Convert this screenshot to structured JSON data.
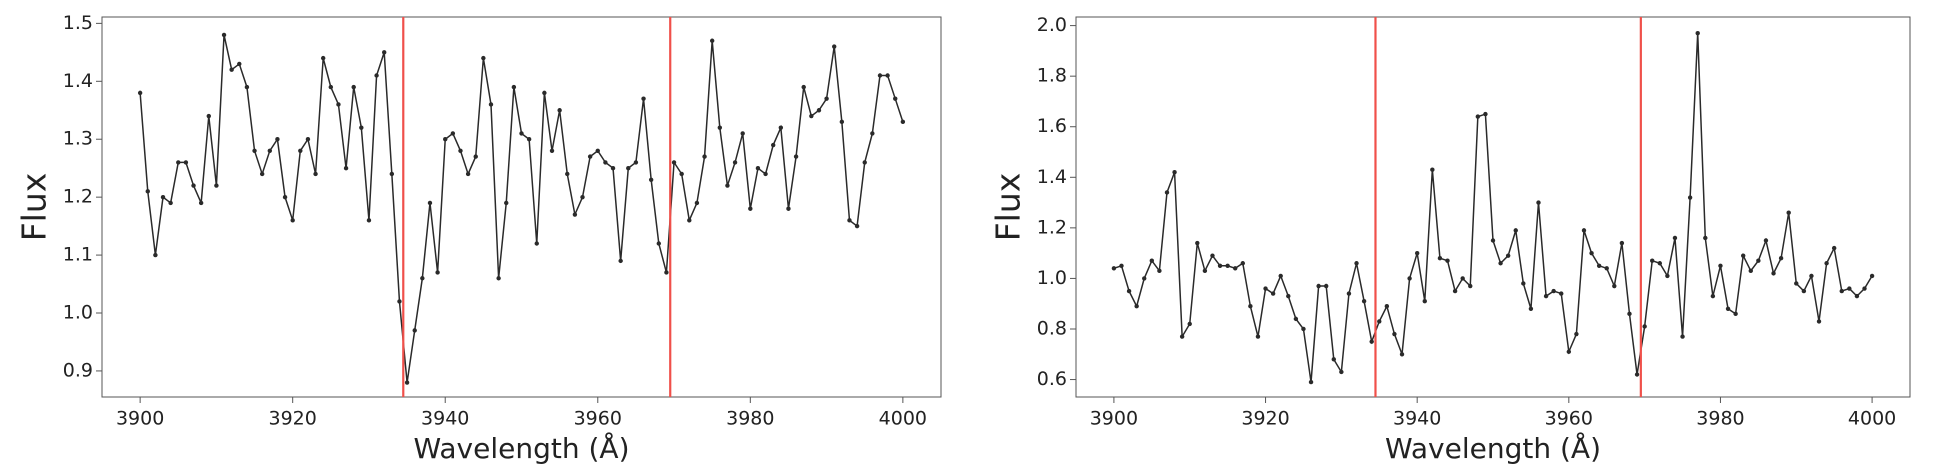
{
  "chart_data": [
    {
      "type": "line",
      "xlabel": "Wavelength (Å)",
      "ylabel": "Flux",
      "xlim": [
        3895,
        4005
      ],
      "ylim": [
        0.855,
        1.511
      ],
      "xticks": [
        3900,
        3920,
        3940,
        3960,
        3980,
        4000
      ],
      "yticks": [
        0.9,
        {
          "value": 1.0,
          "label": "1.0"
        },
        1.1,
        1.2,
        1.3,
        1.4,
        1.5
      ],
      "vlines": [
        3934.5,
        3969.5
      ],
      "vline_color": "#f0504a",
      "x": [
        3900,
        3901,
        3902,
        3903,
        3904,
        3905,
        3906,
        3907,
        3908,
        3909,
        3910,
        3911,
        3912,
        3913,
        3914,
        3915,
        3916,
        3917,
        3918,
        3919,
        3920,
        3921,
        3922,
        3923,
        3924,
        3925,
        3926,
        3927,
        3928,
        3929,
        3930,
        3931,
        3932,
        3933,
        3934,
        3935,
        3936,
        3937,
        3938,
        3939,
        3940,
        3941,
        3942,
        3943,
        3944,
        3945,
        3946,
        3947,
        3948,
        3949,
        3950,
        3951,
        3952,
        3953,
        3954,
        3955,
        3956,
        3957,
        3958,
        3959,
        3960,
        3961,
        3962,
        3963,
        3964,
        3965,
        3966,
        3967,
        3968,
        3969,
        3970,
        3971,
        3972,
        3973,
        3974,
        3975,
        3976,
        3977,
        3978,
        3979,
        3980,
        3981,
        3982,
        3983,
        3984,
        3985,
        3986,
        3987,
        3988,
        3989,
        3990,
        3991,
        3992,
        3993,
        3994,
        3995,
        3996,
        3997,
        3998,
        3999,
        4000
      ],
      "series": [
        {
          "color": "#2a2a2a",
          "values": [
            1.38,
            1.21,
            1.1,
            1.2,
            1.19,
            1.26,
            1.26,
            1.22,
            1.19,
            1.34,
            1.22,
            1.48,
            1.42,
            1.43,
            1.39,
            1.28,
            1.24,
            1.28,
            1.3,
            1.2,
            1.16,
            1.28,
            1.3,
            1.24,
            1.44,
            1.39,
            1.36,
            1.25,
            1.39,
            1.32,
            1.16,
            1.41,
            1.45,
            1.24,
            1.02,
            0.88,
            0.97,
            1.06,
            1.19,
            1.07,
            1.3,
            1.31,
            1.28,
            1.24,
            1.27,
            1.44,
            1.36,
            1.06,
            1.19,
            1.39,
            1.31,
            1.3,
            1.12,
            1.38,
            1.28,
            1.35,
            1.24,
            1.17,
            1.2,
            1.27,
            1.28,
            1.26,
            1.25,
            1.09,
            1.25,
            1.26,
            1.37,
            1.23,
            1.12,
            1.07,
            1.26,
            1.24,
            1.16,
            1.19,
            1.27,
            1.47,
            1.32,
            1.22,
            1.26,
            1.31,
            1.18,
            1.25,
            1.24,
            1.29,
            1.32,
            1.18,
            1.27,
            1.39,
            1.34,
            1.35,
            1.37,
            1.46,
            1.33,
            1.16,
            1.15,
            1.26,
            1.31,
            1.41,
            1.41,
            1.37,
            1.33
          ]
        }
      ]
    },
    {
      "type": "line",
      "xlabel": "Wavelength (Å)",
      "ylabel": "Flux",
      "xlim": [
        3895,
        4005
      ],
      "ylim": [
        0.531,
        2.034
      ],
      "xticks": [
        3900,
        3920,
        3940,
        3960,
        3980,
        4000
      ],
      "yticks": [
        0.6,
        0.8,
        {
          "value": 1.0,
          "label": "1.0"
        },
        1.2,
        1.4,
        1.6,
        1.8,
        {
          "value": 2.0,
          "label": "2.0"
        }
      ],
      "vlines": [
        3934.5,
        3969.5
      ],
      "vline_color": "#f0504a",
      "x": [
        3900,
        3901,
        3902,
        3903,
        3904,
        3905,
        3906,
        3907,
        3908,
        3909,
        3910,
        3911,
        3912,
        3913,
        3914,
        3915,
        3916,
        3917,
        3918,
        3919,
        3920,
        3921,
        3922,
        3923,
        3924,
        3925,
        3926,
        3927,
        3928,
        3929,
        3930,
        3931,
        3932,
        3933,
        3934,
        3935,
        3936,
        3937,
        3938,
        3939,
        3940,
        3941,
        3942,
        3943,
        3944,
        3945,
        3946,
        3947,
        3948,
        3949,
        3950,
        3951,
        3952,
        3953,
        3954,
        3955,
        3956,
        3957,
        3958,
        3959,
        3960,
        3961,
        3962,
        3963,
        3964,
        3965,
        3966,
        3967,
        3968,
        3969,
        3970,
        3971,
        3972,
        3973,
        3974,
        3975,
        3976,
        3977,
        3978,
        3979,
        3980,
        3981,
        3982,
        3983,
        3984,
        3985,
        3986,
        3987,
        3988,
        3989,
        3990,
        3991,
        3992,
        3993,
        3994,
        3995,
        3996,
        3997,
        3998,
        3999,
        4000
      ],
      "series": [
        {
          "color": "#2a2a2a",
          "values": [
            1.04,
            1.05,
            0.95,
            0.89,
            1.0,
            1.07,
            1.03,
            1.34,
            1.42,
            0.77,
            0.82,
            1.14,
            1.03,
            1.09,
            1.05,
            1.05,
            1.04,
            1.06,
            0.89,
            0.77,
            0.96,
            0.94,
            1.01,
            0.93,
            0.84,
            0.8,
            0.59,
            0.97,
            0.97,
            0.68,
            0.63,
            0.94,
            1.06,
            0.91,
            0.75,
            0.83,
            0.89,
            0.78,
            0.7,
            1.0,
            1.1,
            0.91,
            1.43,
            1.08,
            1.07,
            0.95,
            1.0,
            0.97,
            1.64,
            1.65,
            1.15,
            1.06,
            1.09,
            1.19,
            0.98,
            0.88,
            1.3,
            0.93,
            0.95,
            0.94,
            0.71,
            0.78,
            1.19,
            1.1,
            1.05,
            1.04,
            0.97,
            1.14,
            0.86,
            0.62,
            0.81,
            1.07,
            1.06,
            1.01,
            1.16,
            0.77,
            1.32,
            1.97,
            1.16,
            0.93,
            1.05,
            0.88,
            0.86,
            1.09,
            1.03,
            1.07,
            1.15,
            1.02,
            1.08,
            1.26,
            0.98,
            0.95,
            1.01,
            0.83,
            1.06,
            1.12,
            0.95,
            0.96,
            0.93,
            0.96,
            1.01
          ]
        }
      ]
    }
  ]
}
